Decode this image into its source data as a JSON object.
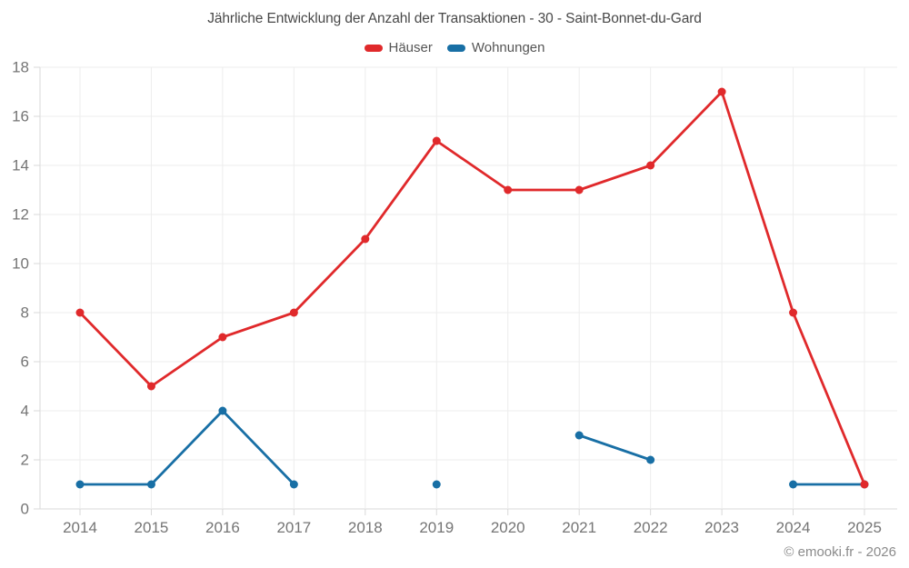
{
  "footer": {
    "text": "© emooki.fr - 2026"
  },
  "chart_data": {
    "type": "line",
    "title": "Jährliche Entwicklung der Anzahl der Transaktionen - 30 - Saint-Bonnet-du-Gard",
    "categories": [
      "2014",
      "2015",
      "2016",
      "2017",
      "2018",
      "2019",
      "2020",
      "2021",
      "2022",
      "2023",
      "2024",
      "2025"
    ],
    "series": [
      {
        "name": "Häuser",
        "color": "#e0292b",
        "values": [
          8,
          5,
          7,
          8,
          11,
          15,
          13,
          13,
          14,
          17,
          8,
          1
        ]
      },
      {
        "name": "Wohnungen",
        "color": "#186fa5",
        "values": [
          1,
          1,
          4,
          1,
          null,
          1,
          null,
          3,
          2,
          null,
          1,
          1
        ]
      }
    ],
    "xlabel": "",
    "ylabel": "",
    "ylim": [
      0,
      18
    ],
    "ytick_step": 2,
    "grid": true,
    "legend_position": "top",
    "grid_color": "#ededed",
    "axis_color": "#d9d9d9",
    "label_color": "#757575"
  }
}
